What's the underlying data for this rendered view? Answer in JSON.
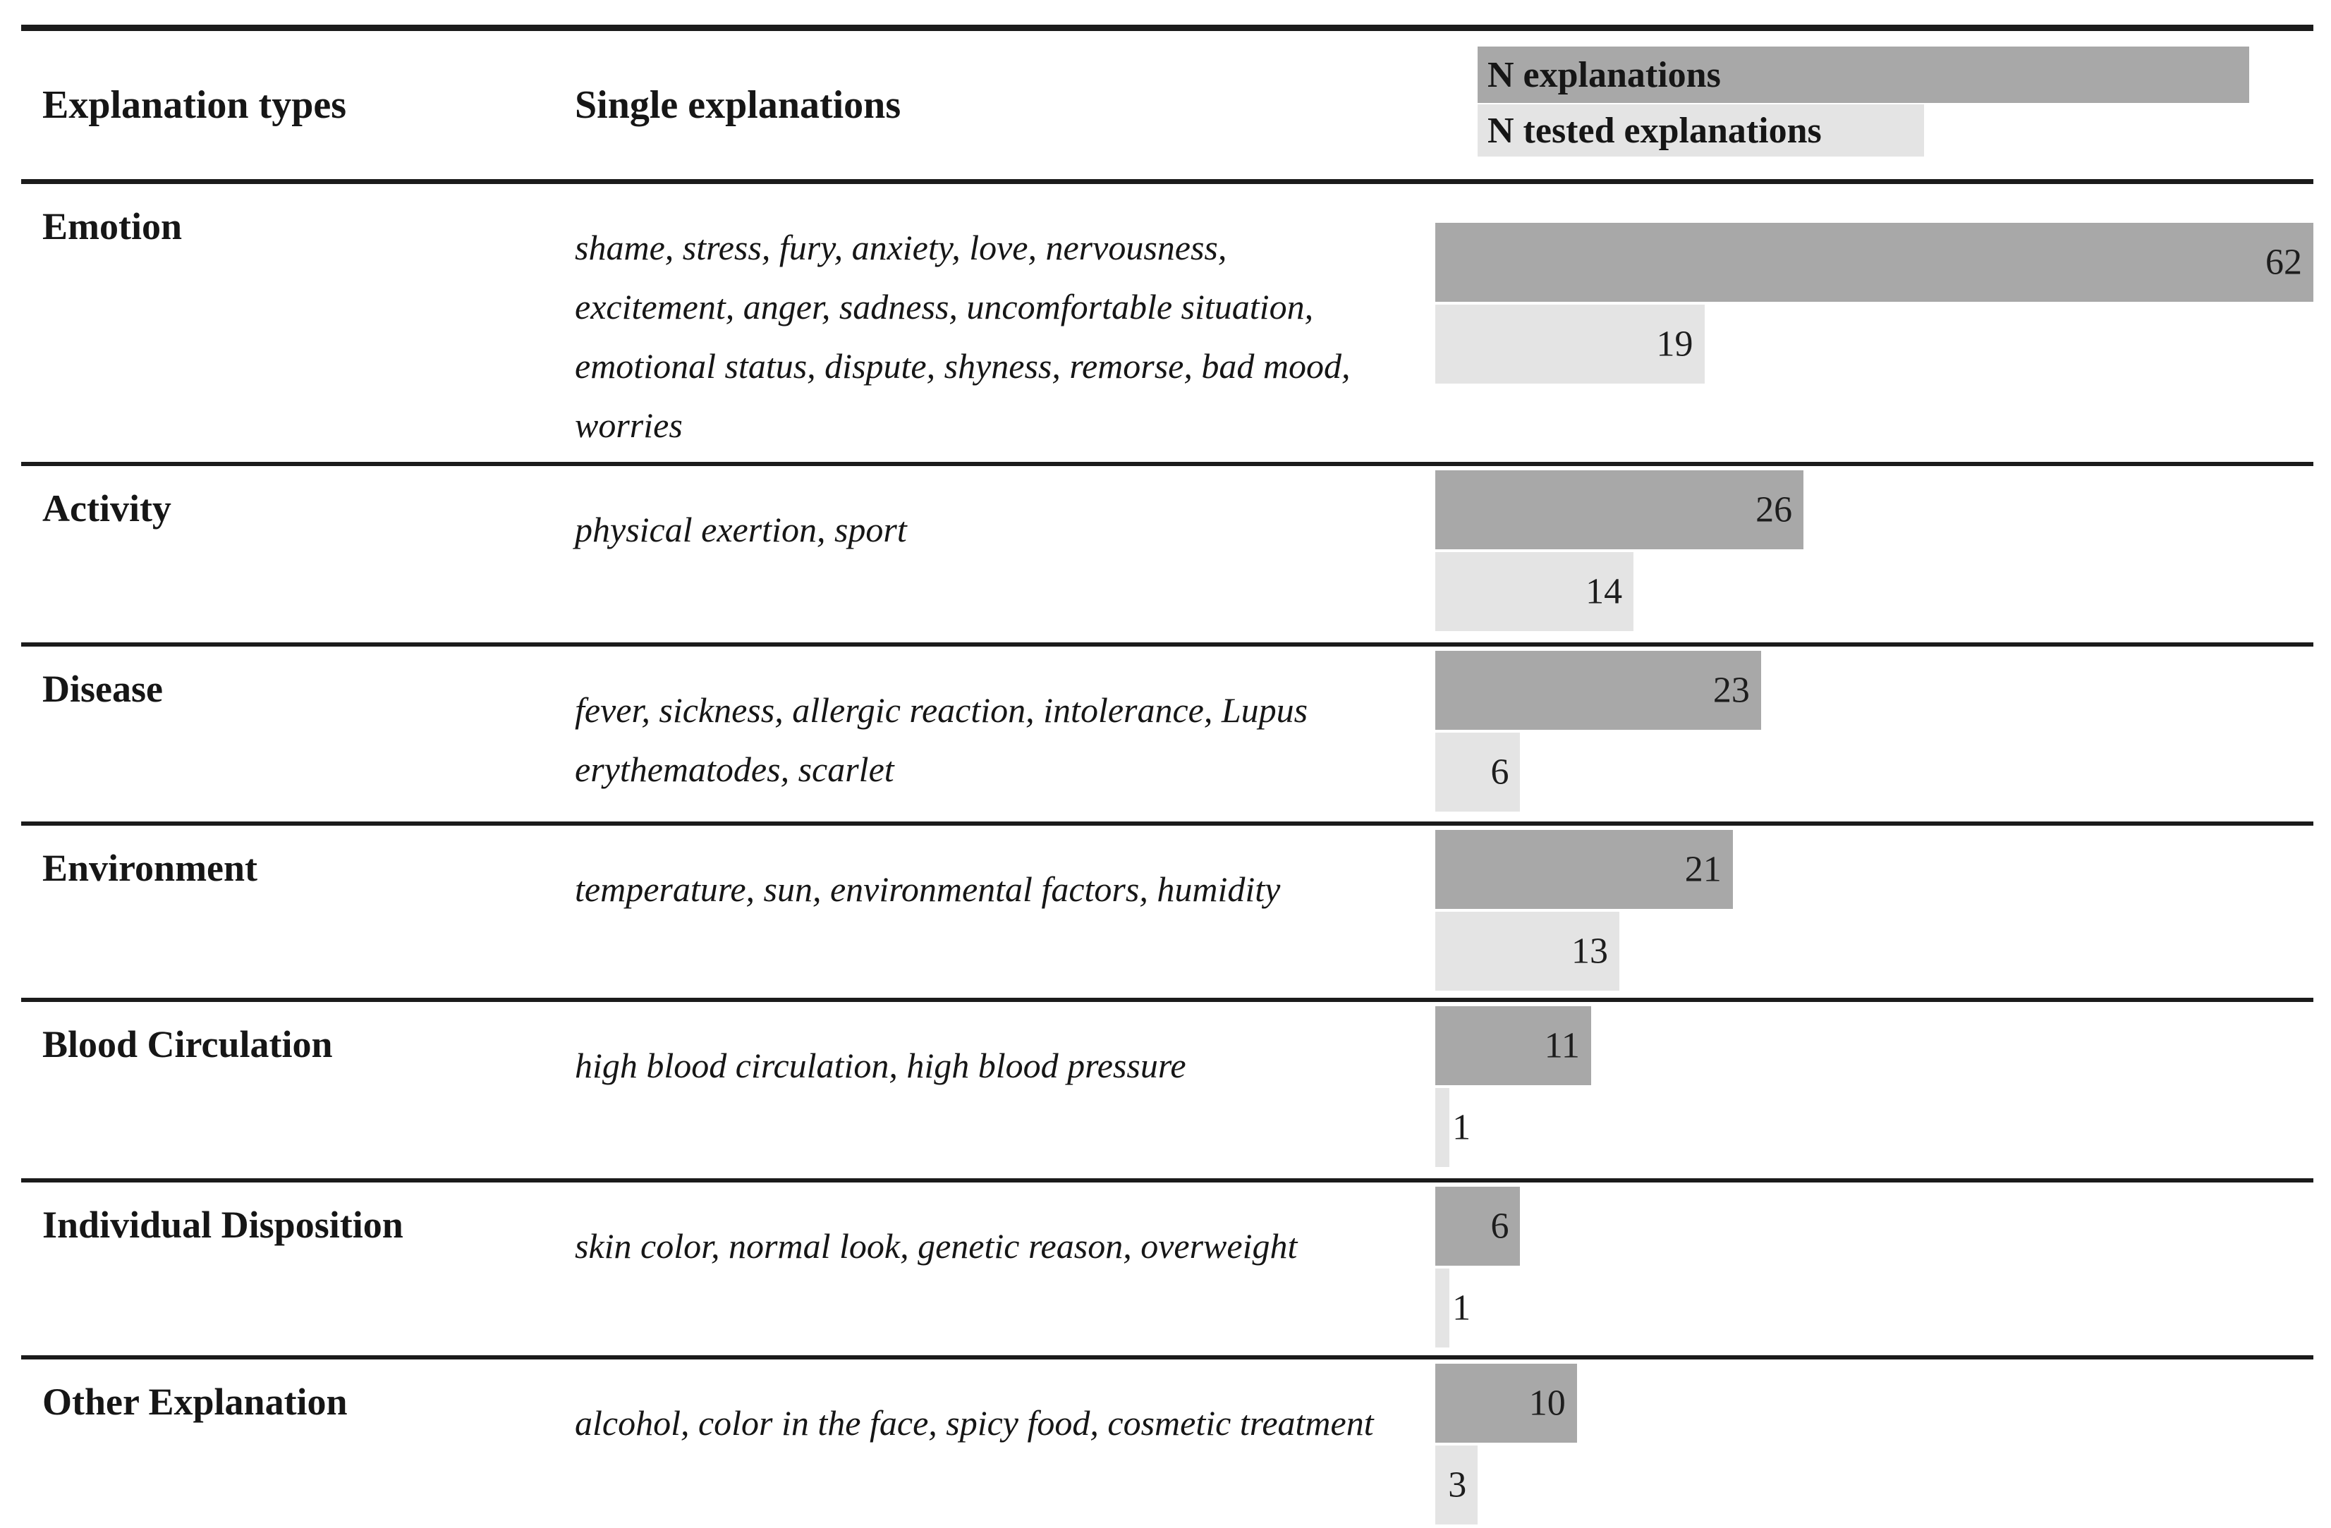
{
  "table": {
    "columns": [
      {
        "label": "Explanation types"
      },
      {
        "label": "Single explanations"
      }
    ],
    "legend": [
      {
        "label": "N explanations",
        "color": "#a8a8a8"
      },
      {
        "label": "N tested explanations",
        "color": "#e4e4e4"
      }
    ],
    "rows": [
      {
        "type": "Emotion",
        "examples": "shame, stress, fury, anxiety, love, nervousness, excitement, anger, sadness, uncomfortable situation, emotional status, dispute, shyness, remorse, bad mood, worries",
        "n_explanations": 62,
        "n_tested": 19
      },
      {
        "type": "Activity",
        "examples": "physical exertion, sport",
        "n_explanations": 26,
        "n_tested": 14
      },
      {
        "type": "Disease",
        "examples": "fever, sickness, allergic reaction, intolerance, Lupus erythematodes, scarlet",
        "n_explanations": 23,
        "n_tested": 6
      },
      {
        "type": "Environment",
        "examples": "temperature, sun, environmental factors, humidity",
        "n_explanations": 21,
        "n_tested": 13
      },
      {
        "type": "Blood Circulation",
        "examples": "high blood circulation, high blood pressure",
        "n_explanations": 11,
        "n_tested": 1
      },
      {
        "type": "Individual Disposition",
        "examples": "skin color, normal look, genetic reason, overweight",
        "n_explanations": 6,
        "n_tested": 1
      },
      {
        "type": "Other Explanation",
        "examples": "alcohol, color in the face, spicy food, cosmetic treatment",
        "n_explanations": 10,
        "n_tested": 3
      }
    ]
  },
  "chart_data": {
    "type": "bar",
    "orientation": "horizontal",
    "title": "",
    "categories": [
      "Emotion",
      "Activity",
      "Disease",
      "Environment",
      "Blood Circulation",
      "Individual Disposition",
      "Other Explanation"
    ],
    "series": [
      {
        "name": "N explanations",
        "color": "#a8a8a8",
        "values": [
          62,
          26,
          23,
          21,
          11,
          6,
          10
        ]
      },
      {
        "name": "N tested explanations",
        "color": "#e4e4e4",
        "values": [
          19,
          14,
          6,
          13,
          1,
          1,
          3
        ]
      }
    ],
    "xlim": [
      0,
      62
    ],
    "value_labels": true,
    "grid": false,
    "legend_position": "top-right"
  }
}
